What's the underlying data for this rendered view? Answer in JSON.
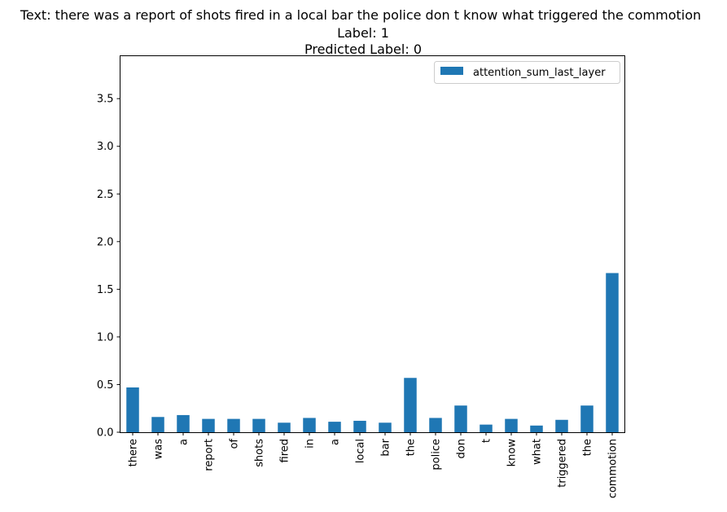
{
  "chart_data": {
    "type": "bar",
    "title_lines": [
      "Text: there was a report of shots fired in a local bar the police don t know what triggered the commotion",
      "Label: 1",
      "Predicted Label: 0"
    ],
    "categories": [
      "there",
      "was",
      "a",
      "report",
      "of",
      "shots",
      "fired",
      "in",
      "a",
      "local",
      "bar",
      "the",
      "police",
      "don",
      "t",
      "know",
      "what",
      "triggered",
      "the",
      "commotion"
    ],
    "series": [
      {
        "name": "attention_sum_last_layer",
        "color": "#1f77b4",
        "values": [
          0.47,
          0.16,
          0.18,
          0.14,
          0.14,
          0.14,
          0.1,
          0.15,
          0.11,
          0.12,
          0.1,
          0.57,
          0.15,
          0.28,
          0.08,
          0.14,
          0.07,
          0.13,
          0.28,
          1.67
        ]
      }
    ],
    "yticks": [
      "0.0",
      "0.5",
      "1.0",
      "1.5",
      "2.0",
      "2.5",
      "3.0",
      "3.5"
    ],
    "ylim": [
      0,
      3.95
    ],
    "legend_position": "upper right",
    "grid": false
  }
}
